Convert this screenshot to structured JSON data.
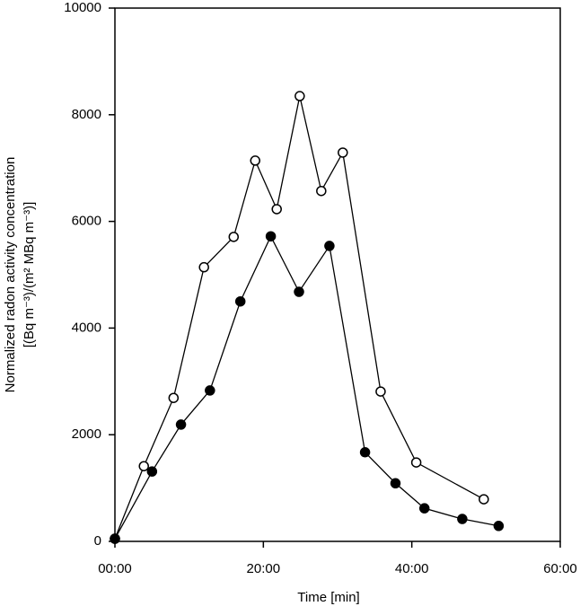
{
  "chart_data": {
    "type": "line",
    "xlabel": "Time  [min]",
    "ylabel": [
      "Normalized radon activity concentration",
      "[(Bq m⁻³)/(m² MBq m⁻³)]"
    ],
    "xlim": [
      0,
      60
    ],
    "xticks": [
      {
        "value": 0,
        "label": "00:00"
      },
      {
        "value": 20,
        "label": "20:00"
      },
      {
        "value": 40,
        "label": "40:00"
      },
      {
        "value": 60,
        "label": "60:00"
      }
    ],
    "ylim": [
      0,
      10000
    ],
    "yticks": [
      0,
      2000,
      4000,
      6000,
      8000,
      10000
    ],
    "grid": false,
    "series": [
      {
        "color": "#000000",
        "marker_fill": "#ffffff",
        "x": [
          0,
          3.9,
          7.9,
          12,
          16,
          18.9,
          21.8,
          24.9,
          27.8,
          30.7,
          35.8,
          40.6,
          49.7
        ],
        "values": [
          50,
          1410,
          2690,
          5140,
          5710,
          7140,
          6230,
          8350,
          6570,
          7290,
          2810,
          1480,
          790
        ]
      },
      {
        "color": "#000000",
        "marker_fill": "#000000",
        "x": [
          0,
          5,
          8.9,
          12.8,
          16.9,
          21,
          24.8,
          28.9,
          33.7,
          37.8,
          41.7,
          46.8,
          51.7
        ],
        "values": [
          50,
          1310,
          2190,
          2830,
          4500,
          5720,
          4680,
          5540,
          1670,
          1090,
          620,
          420,
          290
        ]
      }
    ]
  }
}
